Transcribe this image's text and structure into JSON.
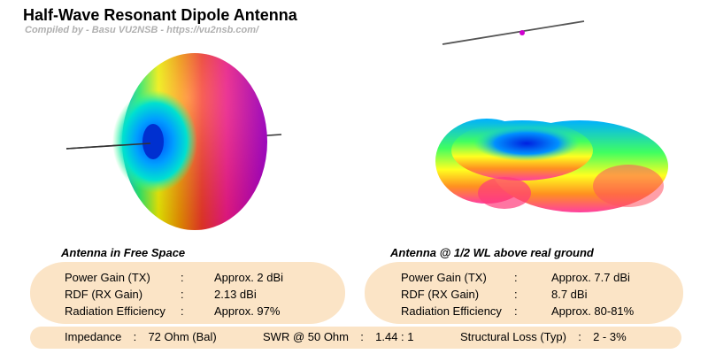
{
  "header": {
    "title": "Half-Wave Resonant Dipole Antenna",
    "subtitle": "Compiled by - Basu VU2NSB - https://vu2nsb.com/"
  },
  "free_space": {
    "heading": "Antenna in Free Space",
    "rows": [
      {
        "label": "Power Gain (TX)",
        "sep": ":",
        "value": "Approx. 2 dBi"
      },
      {
        "label": "RDF (RX Gain)",
        "sep": ":",
        "value": "2.13 dBi"
      },
      {
        "label": "Radiation Efficiency",
        "sep": ":",
        "value": "Approx. 97%"
      }
    ]
  },
  "above_ground": {
    "heading": "Antenna @ 1/2 WL above real ground",
    "rows": [
      {
        "label": "Power Gain (TX)",
        "sep": ":",
        "value": "Approx. 7.7 dBi"
      },
      {
        "label": "RDF (RX Gain)",
        "sep": ":",
        "value": "8.7 dBi"
      },
      {
        "label": "Radiation Efficiency",
        "sep": ":",
        "value": "Approx. 80-81%"
      }
    ]
  },
  "bottom": {
    "impedance_label": "Impedance",
    "impedance_value": "72 Ohm (Bal)",
    "swr_label": "SWR @ 50 Ohm",
    "swr_value": "1.44 : 1",
    "loss_label": "Structural Loss (Typ)",
    "loss_value": "2 - 3%",
    "sep": ":"
  },
  "colors": {
    "pill_fill": "#fbe4c6",
    "subtitle": "#b0b0b0",
    "feed_point": "#d000d0"
  }
}
